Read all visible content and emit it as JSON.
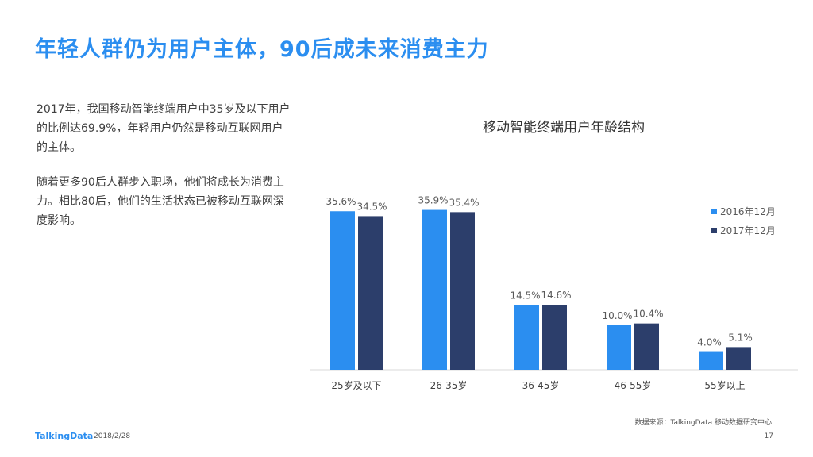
{
  "page": {
    "title": "年轻人群仍为用户主体，90后成未来消费主力",
    "paragraph1": "2017年，我国移动智能终端用户中35岁及以下用户的比例达69.9%，年轻用户仍然是移动互联网用户的主体。",
    "paragraph2": "随着更多90后人群步入职场，他们将成长为消费主力。相比80后，他们的生活状态已被移动互联网深度影响。",
    "source": "数据来源：TalkingData 移动数据研究中心",
    "brand": "TalkingData",
    "date": "2018/2/28",
    "page_number": "17"
  },
  "chart_data": {
    "type": "bar",
    "title": "移动智能终端用户年龄结构",
    "categories": [
      "25岁及以下",
      "26-35岁",
      "36-45岁",
      "46-55岁",
      "55岁以上"
    ],
    "series": [
      {
        "name": "2016年12月",
        "values": [
          35.6,
          35.9,
          14.5,
          10.0,
          4.0
        ],
        "labels": [
          "35.6%",
          "35.9%",
          "14.5%",
          "10.0%",
          "4.0%"
        ],
        "color": "#2b8ef0"
      },
      {
        "name": "2017年12月",
        "values": [
          34.5,
          35.4,
          14.6,
          10.4,
          5.1
        ],
        "labels": [
          "34.5%",
          "35.4%",
          "14.6%",
          "10.4%",
          "5.1%"
        ],
        "color": "#2c3e6b"
      }
    ],
    "ylim": [
      0,
      36
    ],
    "grid": false,
    "legend_position": "right"
  }
}
